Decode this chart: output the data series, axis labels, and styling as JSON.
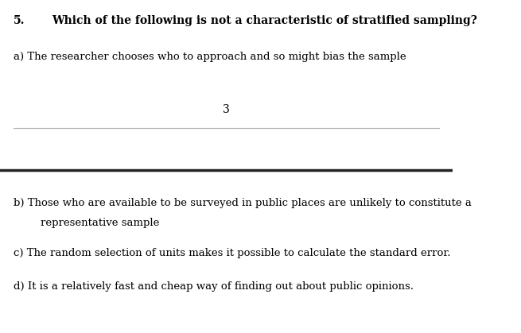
{
  "question_number": "5.",
  "question_text": "Which of the following is not a characteristic of stratified sampling?",
  "option_a": "a) The researcher chooses who to approach and so might bias the sample",
  "page_number": "3",
  "option_b_line1": "b) Those who are available to be surveyed in public places are unlikely to constitute a",
  "option_b_line2": "representative sample",
  "option_c": "c) The random selection of units makes it possible to calculate the standard error.",
  "option_d": "d) It is a relatively fast and cheap way of finding out about public opinions.",
  "bg_color": "#ffffff",
  "text_color": "#000000",
  "divider_color_thin": "#aaaaaa",
  "divider_color_thick": "#222222",
  "fig_width": 6.55,
  "fig_height": 4.19,
  "dpi": 100
}
